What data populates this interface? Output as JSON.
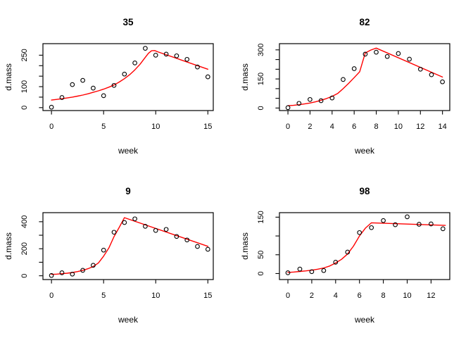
{
  "figure": {
    "type": "r-plot-device",
    "background": "#ffffff",
    "frame_color": "#000000",
    "point_color": "#000000",
    "fit_line_color": "#ff0000",
    "grid": "2x2"
  },
  "chart_data": [
    {
      "type": "scatter",
      "title": "35",
      "xlabel": "week",
      "ylabel": "d.mass",
      "xlim": [
        -0.82,
        15.52
      ],
      "ylim": [
        -14,
        305
      ],
      "xticks": [
        0,
        5,
        10,
        15
      ],
      "xtick_labels": [
        "0",
        "5",
        "10",
        "15"
      ],
      "yticks": [
        0,
        50,
        100,
        150,
        200,
        250
      ],
      "ytick_labels": [
        "0",
        "",
        "100",
        "",
        "",
        "250"
      ],
      "points": {
        "x": [
          0,
          1,
          2,
          3,
          4,
          5,
          6,
          7,
          8,
          9,
          10,
          11,
          12,
          13,
          14,
          15
        ],
        "y": [
          2,
          48,
          110,
          130,
          93,
          57,
          106,
          160,
          213,
          283,
          250,
          255,
          247,
          230,
          194,
          147
        ]
      },
      "fit_line": [
        [
          0,
          36
        ],
        [
          0.5,
          39
        ],
        [
          1,
          42.5
        ],
        [
          1.5,
          46
        ],
        [
          2,
          50
        ],
        [
          2.5,
          55
        ],
        [
          3,
          60
        ],
        [
          3.5,
          66
        ],
        [
          4,
          73
        ],
        [
          4.5,
          80
        ],
        [
          5,
          88
        ],
        [
          5.5,
          97.5
        ],
        [
          6,
          108
        ],
        [
          6.5,
          122
        ],
        [
          7,
          138
        ],
        [
          7.5,
          157
        ],
        [
          8,
          180
        ],
        [
          8.5,
          207
        ],
        [
          9,
          240
        ],
        [
          9.3,
          259
        ],
        [
          9.6,
          271
        ],
        [
          9.9,
          272
        ],
        [
          10.2,
          266
        ],
        [
          15,
          183
        ]
      ],
      "legend": "none",
      "grid_lines": "off"
    },
    {
      "type": "scatter",
      "title": "82",
      "xlabel": "week",
      "ylabel": "d.mass",
      "xlim": [
        -0.77,
        14.66
      ],
      "ylim": [
        -13,
        332
      ],
      "xticks": [
        0,
        2,
        4,
        6,
        8,
        10,
        12,
        14
      ],
      "xtick_labels": [
        "0",
        "2",
        "4",
        "6",
        "8",
        "10",
        "12",
        "14"
      ],
      "yticks": [
        0,
        50,
        100,
        150,
        200,
        250,
        300
      ],
      "ytick_labels": [
        "0",
        "",
        "",
        "150",
        "",
        "",
        "300"
      ],
      "points": {
        "x": [
          0,
          1,
          2,
          3,
          4,
          5,
          6,
          7,
          8,
          9,
          10,
          11,
          12,
          13,
          14
        ],
        "y": [
          2,
          24,
          44,
          38,
          52,
          147,
          203,
          278,
          288,
          266,
          281,
          252,
          200,
          172,
          135
        ]
      },
      "fit_line": [
        [
          0,
          12
        ],
        [
          0.5,
          14
        ],
        [
          1,
          17
        ],
        [
          1.5,
          21
        ],
        [
          2,
          26
        ],
        [
          2.5,
          32
        ],
        [
          3,
          40
        ],
        [
          3.5,
          49
        ],
        [
          4,
          60
        ],
        [
          4.5,
          75
        ],
        [
          5,
          100
        ],
        [
          5.5,
          127
        ],
        [
          6,
          157
        ],
        [
          6.5,
          187
        ],
        [
          7,
          284
        ],
        [
          7.5,
          299
        ],
        [
          8,
          309
        ],
        [
          14,
          160
        ]
      ],
      "legend": "none",
      "grid_lines": "off"
    },
    {
      "type": "scatter",
      "title": "9",
      "xlabel": "week",
      "ylabel": "d.mass",
      "xlim": [
        -0.82,
        15.52
      ],
      "ylim": [
        -28,
        467
      ],
      "xticks": [
        0,
        5,
        10,
        15
      ],
      "xtick_labels": [
        "0",
        "5",
        "10",
        "15"
      ],
      "yticks": [
        0,
        100,
        200,
        300,
        400
      ],
      "ytick_labels": [
        "0",
        "",
        "200",
        "",
        "400"
      ],
      "points": {
        "x": [
          0,
          1,
          2,
          3,
          4,
          5,
          6,
          7,
          8,
          9,
          10,
          11,
          12,
          13,
          14,
          15
        ],
        "y": [
          2,
          22,
          12,
          40,
          78,
          190,
          322,
          394,
          421,
          366,
          335,
          343,
          291,
          265,
          217,
          196
        ]
      },
      "fit_line": [
        [
          0,
          10
        ],
        [
          0.5,
          12
        ],
        [
          1,
          15
        ],
        [
          1.5,
          19
        ],
        [
          2,
          24
        ],
        [
          2.5,
          31
        ],
        [
          3,
          40
        ],
        [
          3.5,
          52
        ],
        [
          4,
          68
        ],
        [
          4.5,
          95
        ],
        [
          5,
          145
        ],
        [
          5.5,
          205
        ],
        [
          6,
          290
        ],
        [
          6.5,
          358
        ],
        [
          7,
          430
        ],
        [
          15,
          218
        ]
      ],
      "legend": "none",
      "grid_lines": "off"
    },
    {
      "type": "scatter",
      "title": "98",
      "xlabel": "week",
      "ylabel": "d.mass",
      "xlim": [
        -0.71,
        13.57
      ],
      "ylim": [
        -16,
        162
      ],
      "xticks": [
        0,
        2,
        4,
        6,
        8,
        10,
        12
      ],
      "xtick_labels": [
        "0",
        "2",
        "4",
        "6",
        "8",
        "10",
        "12"
      ],
      "yticks": [
        0,
        50,
        100,
        150
      ],
      "ytick_labels": [
        "0",
        "50",
        "",
        "150"
      ],
      "points": {
        "x": [
          0,
          1,
          2,
          3,
          4,
          5,
          6,
          7,
          8,
          9,
          10,
          11,
          12,
          13
        ],
        "y": [
          2,
          12,
          5,
          8,
          30,
          57,
          109,
          122,
          141,
          130,
          151,
          131,
          132,
          119
        ]
      },
      "fit_line": [
        [
          0,
          3
        ],
        [
          0.5,
          4
        ],
        [
          1,
          5.5
        ],
        [
          1.5,
          7
        ],
        [
          2,
          9
        ],
        [
          2.5,
          11.5
        ],
        [
          3,
          15
        ],
        [
          3.5,
          20
        ],
        [
          4,
          28
        ],
        [
          4.5,
          38
        ],
        [
          5,
          52
        ],
        [
          5.5,
          73
        ],
        [
          6,
          100
        ],
        [
          6.5,
          121
        ],
        [
          7,
          135
        ],
        [
          13.2,
          128
        ]
      ],
      "legend": "none",
      "grid_lines": "off"
    }
  ]
}
